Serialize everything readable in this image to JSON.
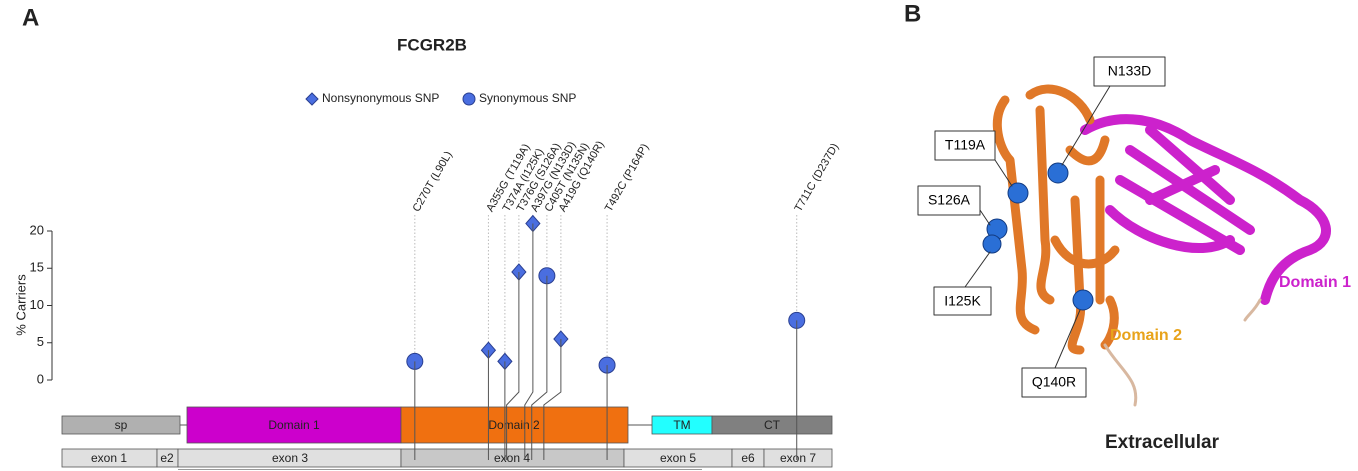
{
  "panel_labels": [
    "A",
    "B"
  ],
  "chart_data": {
    "type": "lollipop",
    "title": "FCGR2B",
    "y_label": "% Carriers",
    "ylim": [
      0,
      20
    ],
    "yticks": [
      0,
      5,
      10,
      15,
      20
    ],
    "series": [
      {
        "name": "Nonsynonymous SNP",
        "color": "#4a6ee0",
        "marker": "diamond",
        "labels": [
          "A355G (T119A)",
          "T374A (I125K)",
          "T376G (S126A)",
          "A397G (N133D)",
          "A419G (Q140R)"
        ],
        "x": [
          355,
          374,
          376,
          397,
          419
        ],
        "values": [
          4,
          2.5,
          14.5,
          21,
          5.5
        ]
      },
      {
        "name": "Synonymous SNP",
        "color": "#4a6ee0",
        "marker": "circle",
        "labels": [
          "C270T (L90L)",
          "C405T (N135N)",
          "T492C (P164P)",
          "T711C (D237D)"
        ],
        "x": [
          270,
          405,
          492,
          711
        ],
        "values": [
          2.5,
          14,
          2,
          8
        ]
      }
    ]
  },
  "gene_model": {
    "domains": [
      "sp",
      "Domain 1",
      "Domain 2",
      "TM",
      "CT"
    ],
    "exons": [
      "exon 1",
      "e2",
      "exon 3",
      "exon 4",
      "exon 5",
      "e6",
      "exon 7"
    ]
  },
  "structure": {
    "variants": [
      "N133D",
      "T119A",
      "S126A",
      "I125K",
      "Q140R"
    ],
    "domain_1": "Domain 1",
    "domain_2": "Domain 2",
    "caption": "Extracellular"
  }
}
